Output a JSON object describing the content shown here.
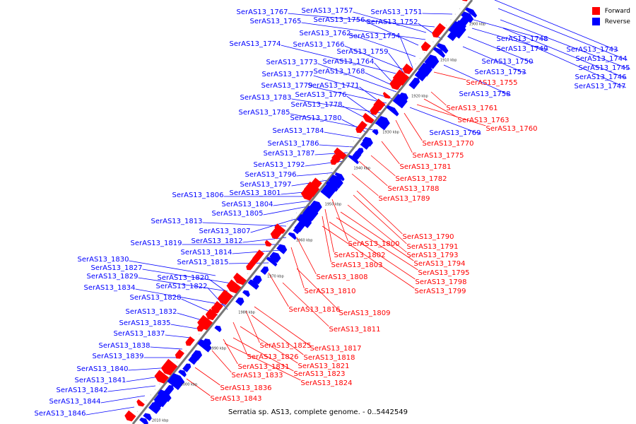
{
  "legend": {
    "forward_label": "Forward",
    "reverse_label": "Reverse",
    "forward_color": "#ff0000",
    "reverse_color": "#0000ff"
  },
  "caption": "Serratia sp. AS13, complete genome. - 0..5442549",
  "ticks": [
    "1900 kbp",
    "1910 kbp",
    "1920 kbp",
    "1930 kbp",
    "1940 kbp",
    "1950 kbp",
    "1960 kbp",
    "1970 kbp",
    "1980 kbp",
    "1990 kbp",
    "2000 kbp",
    "2010 kbp"
  ],
  "reverse_genes": [
    "SerAS13_1767",
    "SerAS13_1757",
    "SerAS13_1751",
    "SerAS13_1765",
    "SerAS13_1756",
    "SerAS13_1752",
    "SerAS13_1762",
    "SerAS13_1754",
    "SerAS13_1774",
    "SerAS13_1766",
    "SerAS13_1759",
    "SerAS13_1773",
    "SerAS13_1764",
    "SerAS13_1777",
    "SerAS13_1768",
    "SerAS13_1779",
    "SerAS13_1771",
    "SerAS13_1783",
    "SerAS13_1776",
    "SerAS13_1778",
    "SerAS13_1785",
    "SerAS13_1780",
    "SerAS13_1784",
    "SerAS13_1786",
    "SerAS13_1787",
    "SerAS13_1792",
    "SerAS13_1796",
    "SerAS13_1797",
    "SerAS13_1806",
    "SerAS13_1801",
    "SerAS13_1804",
    "SerAS13_1805",
    "SerAS13_1813",
    "SerAS13_1807",
    "SerAS13_1819",
    "SerAS13_1812",
    "SerAS13_1814",
    "SerAS13_1830",
    "SerAS13_1815",
    "SerAS13_1827",
    "SerAS13_1829",
    "SerAS13_1820",
    "SerAS13_1834",
    "SerAS13_1822",
    "SerAS13_1828",
    "SerAS13_1832",
    "SerAS13_1835",
    "SerAS13_1837",
    "SerAS13_1838",
    "SerAS13_1839",
    "SerAS13_1840",
    "SerAS13_1841",
    "SerAS13_1842",
    "SerAS13_1844",
    "SerAS13_1846",
    "SerAS13_1748",
    "SerAS13_1743",
    "SerAS13_1749",
    "SerAS13_1744",
    "SerAS13_1750",
    "SerAS13_1745",
    "SerAS13_1753",
    "SerAS13_1746",
    "SerAS13_1747",
    "SerAS13_1758",
    "SerAS13_1769"
  ],
  "forward_genes": [
    "SerAS13_1755",
    "SerAS13_1761",
    "SerAS13_1763",
    "SerAS13_1760",
    "SerAS13_1770",
    "SerAS13_1775",
    "SerAS13_1781",
    "SerAS13_1782",
    "SerAS13_1788",
    "SerAS13_1789",
    "SerAS13_1790",
    "SerAS13_1800",
    "SerAS13_1791",
    "SerAS13_1802",
    "SerAS13_1793",
    "SerAS13_1803",
    "SerAS13_1794",
    "SerAS13_1795",
    "SerAS13_1808",
    "SerAS13_1798",
    "SerAS13_1810",
    "SerAS13_1799",
    "SerAS13_1816",
    "SerAS13_1809",
    "SerAS13_1811",
    "SerAS13_1825",
    "SerAS13_1817",
    "SerAS13_1826",
    "SerAS13_1818",
    "SerAS13_1821",
    "SerAS13_1831",
    "SerAS13_1823",
    "SerAS13_1833",
    "SerAS13_1824",
    "SerAS13_1836",
    "SerAS13_1843"
  ]
}
